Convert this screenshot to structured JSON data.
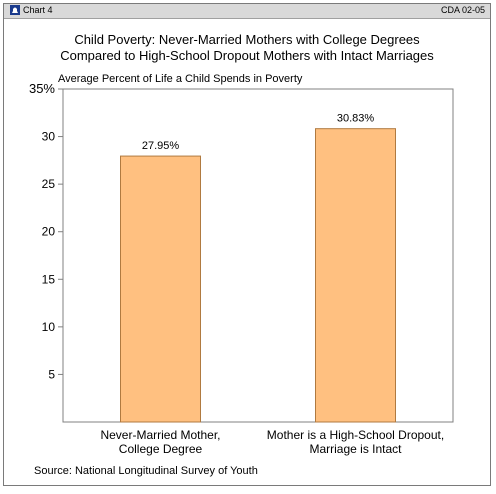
{
  "header": {
    "chart_label": "Chart 4",
    "report_id": "CDA 02-05"
  },
  "title_lines": [
    "Child Poverty: Never-Married Mothers with College Degrees",
    "Compared to High-School Dropout Mothers with Intact Marriages"
  ],
  "source": {
    "label": "Source:",
    "text": "National Longitudinal Survey of Youth"
  },
  "colors": {
    "bar_fill": "#ffc080",
    "bar_stroke": "#b07a40",
    "axis": "#808080",
    "header_bg": "#d9d9d9"
  },
  "chart_data": {
    "type": "bar",
    "ylabel": "Average Percent of Life a Child Spends in Poverty",
    "ylim": [
      0,
      35
    ],
    "yticks": [
      {
        "value": 5,
        "label": "5"
      },
      {
        "value": 10,
        "label": "10"
      },
      {
        "value": 15,
        "label": "15"
      },
      {
        "value": 20,
        "label": "20"
      },
      {
        "value": 25,
        "label": "25"
      },
      {
        "value": 30,
        "label": "30"
      },
      {
        "value": 35,
        "label": "35%"
      }
    ],
    "categories": [
      [
        "Never-Married Mother,",
        "College Degree"
      ],
      [
        "Mother is a High-School Dropout,",
        "Marriage is Intact"
      ]
    ],
    "values": [
      27.95,
      30.83
    ],
    "value_labels": [
      "27.95%",
      "30.83%"
    ],
    "grid": false,
    "legend": "none"
  }
}
